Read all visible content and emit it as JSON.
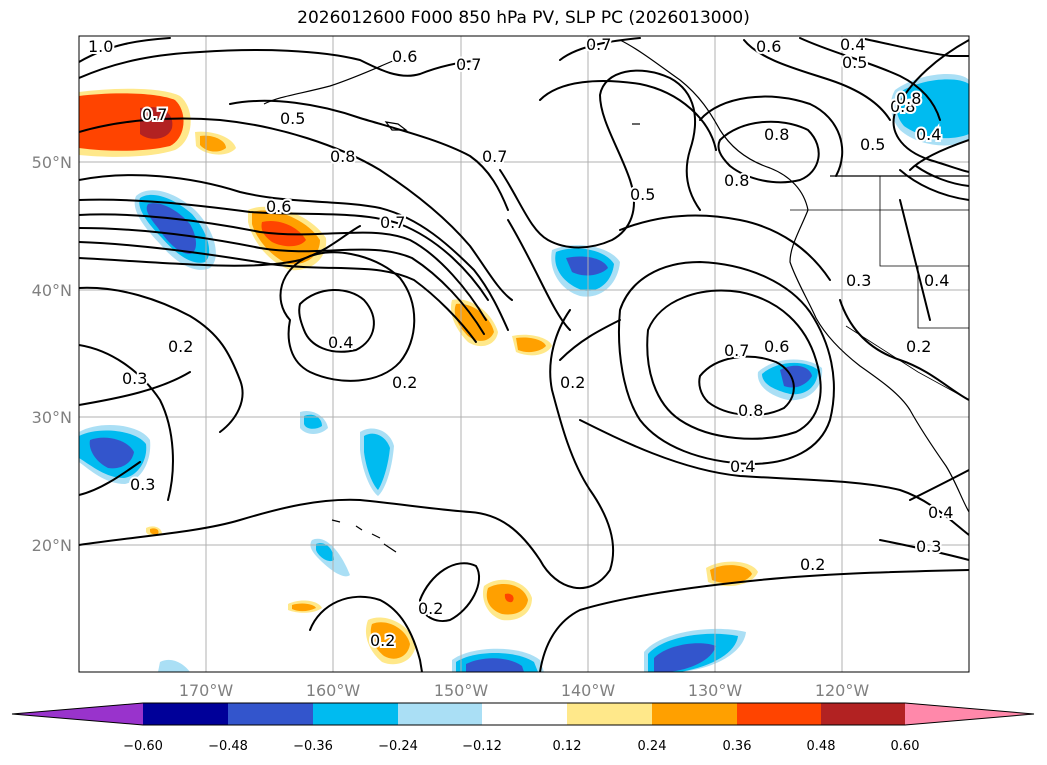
{
  "title": "2026012600 F000 850 hPa PV, SLP PC (2026013000)",
  "map": {
    "lat_labels": [
      "50°N",
      "40°N",
      "30°N",
      "20°N"
    ],
    "lon_labels": [
      "170°W",
      "160°W",
      "150°W",
      "140°W",
      "130°W",
      "120°W"
    ],
    "contour_labels": [
      "1.0",
      "0.5",
      "0.7",
      "0.8",
      "0.6",
      "0.7",
      "0.4",
      "0.2",
      "0.2",
      "0.3",
      "0.3",
      "0.2",
      "0.2",
      "0.7",
      "0.5",
      "0.8",
      "0.8",
      "0.7",
      "0.6",
      "0.4",
      "0.5",
      "0.8",
      "0.5",
      "0.4",
      "0.3",
      "0.4",
      "0.2",
      "0.2",
      "0.7",
      "0.6",
      "0.8",
      "0.4",
      "0.2",
      "0.3",
      "0.4",
      "0.6",
      "0.7",
      "0.8"
    ]
  },
  "colorbar": {
    "colors": [
      "#9933cc",
      "#000099",
      "#3355cc",
      "#00bbf0",
      "#aadff5",
      "#ffffff",
      "#ffe88a",
      "#ffa000",
      "#ff4400",
      "#b22222",
      "#ff88aa"
    ],
    "ticks": [
      "−0.60",
      "−0.48",
      "−0.36",
      "−0.24",
      "−0.12",
      "0.12",
      "0.24",
      "0.36",
      "0.48",
      "0.60"
    ]
  }
}
